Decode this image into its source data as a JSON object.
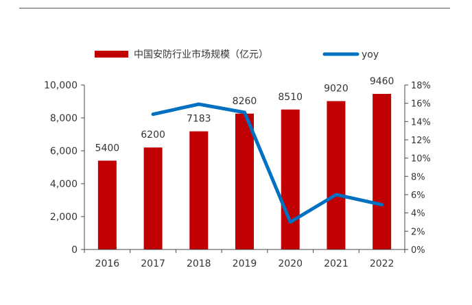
{
  "chart_data": {
    "type": "bar",
    "title": "",
    "categories": [
      "2016",
      "2017",
      "2018",
      "2019",
      "2020",
      "2021",
      "2022"
    ],
    "series": [
      {
        "name": "中国安防行业市场规模（亿元）",
        "type": "bar",
        "axis": "left",
        "color": "#C00000",
        "values": [
          5400,
          6200,
          7183,
          8260,
          8510,
          9020,
          9460
        ]
      },
      {
        "name": "yoy",
        "type": "line",
        "axis": "right",
        "color": "#0070C0",
        "values": [
          null,
          14.8,
          15.9,
          15.0,
          3.0,
          6.0,
          4.9
        ]
      }
    ],
    "left_axis": {
      "ylim": [
        0,
        10000
      ],
      "ticks": [
        "0",
        "2,000",
        "4,000",
        "6,000",
        "8,000",
        "10,000"
      ]
    },
    "right_axis": {
      "ylim": [
        0,
        18
      ],
      "ticks": [
        "0%",
        "2%",
        "4%",
        "6%",
        "8%",
        "10%",
        "12%",
        "14%",
        "16%",
        "18%"
      ]
    },
    "data_labels": [
      "5400",
      "6200",
      "7183",
      "8260",
      "8510",
      "9020",
      "9460"
    ],
    "legend": {
      "placement": "top",
      "entries": [
        "中国安防行业市场规模（亿元）",
        "yoy"
      ]
    },
    "grid": false
  }
}
